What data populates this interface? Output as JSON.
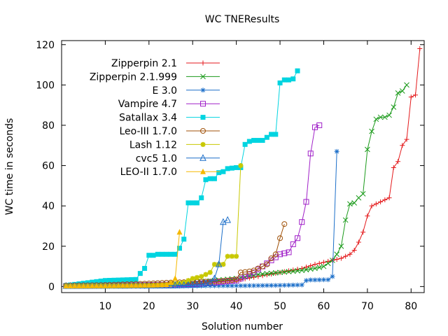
{
  "chart_data": {
    "type": "line",
    "title": "WC TNEResults",
    "xlabel": "Solution number",
    "ylabel": "WC time in seconds",
    "xlim": [
      0,
      83
    ],
    "ylim": [
      -3,
      122
    ],
    "xticks": [
      10,
      20,
      30,
      40,
      50,
      60,
      70,
      80
    ],
    "yticks": [
      0,
      20,
      40,
      60,
      80,
      100,
      120
    ],
    "grid": false,
    "legend": "top-left",
    "series": [
      {
        "name": "Zipperpin 2.1",
        "color": "#e41a1c",
        "marker": "plus",
        "points": [
          [
            1,
            0.3
          ],
          [
            10,
            0.5
          ],
          [
            20,
            1.0
          ],
          [
            30,
            1.5
          ],
          [
            40,
            3
          ],
          [
            45,
            5
          ],
          [
            50,
            7
          ],
          [
            55,
            9
          ],
          [
            58,
            11
          ],
          [
            60,
            12
          ],
          [
            62,
            13
          ],
          [
            64,
            14
          ],
          [
            66,
            16
          ],
          [
            67,
            18
          ],
          [
            68,
            22
          ],
          [
            69,
            27
          ],
          [
            70,
            35
          ],
          [
            71,
            40
          ],
          [
            72,
            41
          ],
          [
            73,
            42
          ],
          [
            74,
            43
          ],
          [
            75,
            44
          ],
          [
            76,
            59
          ],
          [
            77,
            62
          ],
          [
            78,
            70
          ],
          [
            79,
            73
          ],
          [
            80,
            94
          ],
          [
            81,
            95
          ],
          [
            82,
            118
          ]
        ]
      },
      {
        "name": "Zipperpin 2.1.999",
        "color": "#1a9a1a",
        "marker": "x",
        "points": [
          [
            1,
            0.5
          ],
          [
            10,
            0.8
          ],
          [
            20,
            1.2
          ],
          [
            30,
            2
          ],
          [
            40,
            4
          ],
          [
            45,
            6
          ],
          [
            50,
            7
          ],
          [
            55,
            8
          ],
          [
            58,
            9
          ],
          [
            60,
            10
          ],
          [
            62,
            13
          ],
          [
            63,
            16
          ],
          [
            64,
            20
          ],
          [
            65,
            33
          ],
          [
            66,
            41
          ],
          [
            67,
            41.5
          ],
          [
            68,
            44
          ],
          [
            69,
            46
          ],
          [
            70,
            68
          ],
          [
            71,
            77
          ],
          [
            72,
            83
          ],
          [
            73,
            84
          ],
          [
            74,
            84
          ],
          [
            75,
            85
          ],
          [
            76,
            89
          ],
          [
            77,
            96
          ],
          [
            78,
            97
          ],
          [
            79,
            100
          ]
        ]
      },
      {
        "name": "E 3.0",
        "color": "#1c6fc9",
        "marker": "star",
        "points": [
          [
            1,
            0.1
          ],
          [
            10,
            0.1
          ],
          [
            20,
            0.2
          ],
          [
            30,
            0.3
          ],
          [
            40,
            0.4
          ],
          [
            45,
            0.5
          ],
          [
            50,
            0.6
          ],
          [
            55,
            0.8
          ],
          [
            56,
            3
          ],
          [
            57,
            3.3
          ],
          [
            58,
            3.3
          ],
          [
            60,
            3.4
          ],
          [
            61,
            3.4
          ],
          [
            62,
            5
          ],
          [
            63,
            67
          ]
        ]
      },
      {
        "name": "Vampire 4.7",
        "color": "#a020c8",
        "marker": "square-open",
        "points": [
          [
            1,
            0.3
          ],
          [
            10,
            0.5
          ],
          [
            20,
            0.8
          ],
          [
            30,
            1.2
          ],
          [
            35,
            2
          ],
          [
            40,
            3
          ],
          [
            42,
            5
          ],
          [
            44,
            7
          ],
          [
            46,
            10
          ],
          [
            48,
            13
          ],
          [
            50,
            16
          ],
          [
            51,
            16.5
          ],
          [
            52,
            17
          ],
          [
            53,
            21
          ],
          [
            54,
            24
          ],
          [
            55,
            32
          ],
          [
            56,
            42
          ],
          [
            57,
            66
          ],
          [
            58,
            79
          ],
          [
            59,
            80
          ]
        ]
      },
      {
        "name": "Satallax 3.4",
        "color": "#00d4e0",
        "marker": "square-filled",
        "points": [
          [
            1,
            0.5
          ],
          [
            10,
            3
          ],
          [
            17,
            3.5
          ],
          [
            18,
            6.5
          ],
          [
            19,
            9
          ],
          [
            20,
            15.5
          ],
          [
            21,
            15.5
          ],
          [
            22,
            16
          ],
          [
            23,
            16
          ],
          [
            25,
            16
          ],
          [
            26,
            16
          ],
          [
            27,
            19
          ],
          [
            28,
            23.5
          ],
          [
            29,
            41.5
          ],
          [
            30,
            41.5
          ],
          [
            31,
            41.5
          ],
          [
            32,
            44
          ],
          [
            33,
            53
          ],
          [
            34,
            53.5
          ],
          [
            35,
            53.5
          ],
          [
            36,
            56.5
          ],
          [
            37,
            57
          ],
          [
            38,
            58.5
          ],
          [
            40,
            59
          ],
          [
            41,
            59
          ],
          [
            42,
            70.5
          ],
          [
            43,
            72
          ],
          [
            44,
            72.5
          ],
          [
            46,
            72.5
          ],
          [
            48,
            75.5
          ],
          [
            49,
            75.5
          ],
          [
            50,
            101
          ],
          [
            51,
            102.5
          ],
          [
            52,
            102.5
          ],
          [
            53,
            103
          ],
          [
            54,
            107
          ]
        ]
      },
      {
        "name": "Leo-III 1.7.0",
        "color": "#a0520a",
        "marker": "circle-open",
        "points": [
          [
            1,
            0.5
          ],
          [
            10,
            0.8
          ],
          [
            20,
            1.5
          ],
          [
            25,
            2
          ],
          [
            30,
            2.3
          ],
          [
            35,
            2.5
          ],
          [
            38,
            3
          ],
          [
            40,
            3.5
          ],
          [
            41,
            7
          ],
          [
            42,
            7.2
          ],
          [
            43,
            7.5
          ],
          [
            44,
            8
          ],
          [
            45,
            9
          ],
          [
            46,
            10
          ],
          [
            47,
            11
          ],
          [
            48,
            14
          ],
          [
            49,
            16
          ],
          [
            50,
            24
          ],
          [
            51,
            31
          ]
        ]
      },
      {
        "name": "Lash 1.12",
        "color": "#c8c800",
        "marker": "star-filled",
        "points": [
          [
            1,
            0.2
          ],
          [
            10,
            0.3
          ],
          [
            20,
            0.5
          ],
          [
            25,
            1
          ],
          [
            28,
            2
          ],
          [
            30,
            4
          ],
          [
            32,
            5
          ],
          [
            34,
            7
          ],
          [
            35,
            11
          ],
          [
            36,
            11
          ],
          [
            37,
            11
          ],
          [
            38,
            15
          ],
          [
            39,
            15
          ],
          [
            40,
            15
          ],
          [
            41,
            60
          ]
        ]
      },
      {
        "name": "cvc5 1.0",
        "color": "#1c6fc9",
        "marker": "triangle-open",
        "points": [
          [
            1,
            0.3
          ],
          [
            10,
            0.4
          ],
          [
            20,
            0.5
          ],
          [
            25,
            0.5
          ],
          [
            30,
            0.8
          ],
          [
            32,
            1
          ],
          [
            34,
            2
          ],
          [
            35,
            4
          ],
          [
            36,
            11
          ],
          [
            37,
            32
          ],
          [
            38,
            33
          ]
        ]
      },
      {
        "name": "LEO-II 1.7.0",
        "color": "#f5b800",
        "marker": "triangle-filled",
        "points": [
          [
            1,
            0.3
          ],
          [
            10,
            0.4
          ],
          [
            18,
            0.6
          ],
          [
            22,
            0.8
          ],
          [
            24,
            1
          ],
          [
            25,
            2
          ],
          [
            26,
            4
          ],
          [
            27,
            27
          ]
        ]
      }
    ]
  }
}
